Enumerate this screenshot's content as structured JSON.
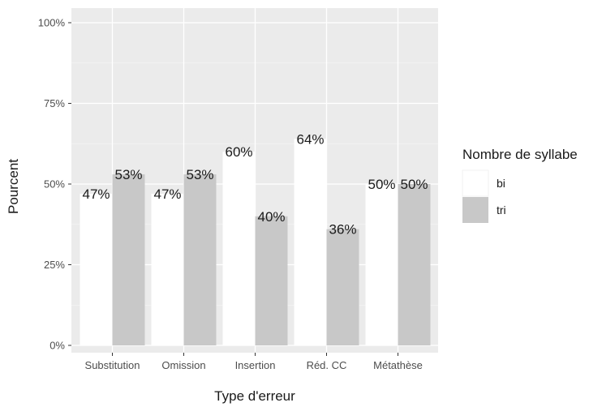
{
  "chart_data": {
    "type": "bar",
    "xlabel": "Type d'erreur",
    "ylabel": "Pourcent",
    "categories": [
      "Substitution",
      "Omission",
      "Insertion",
      "Réd. CC",
      "Métathèse"
    ],
    "series": [
      {
        "name": "bi",
        "values": [
          47,
          47,
          60,
          64,
          50
        ],
        "labels": [
          "47%",
          "47%",
          "60%",
          "64%",
          "50%"
        ],
        "color": "#ffffff"
      },
      {
        "name": "tri",
        "values": [
          53,
          53,
          40,
          36,
          50
        ],
        "labels": [
          "53%",
          "53%",
          "40%",
          "36%",
          "50%"
        ],
        "color": "#c8c8c8"
      }
    ],
    "ylim": [
      0,
      100
    ],
    "yticks": [
      0,
      25,
      50,
      75,
      100
    ],
    "ytick_labels": [
      "0%",
      "25%",
      "50%",
      "75%",
      "100%"
    ],
    "legend": {
      "title": "Nombre de syllabe",
      "position": "right"
    },
    "grid": true,
    "panel_background": "#ebebeb",
    "grid_color": "#ffffff"
  }
}
